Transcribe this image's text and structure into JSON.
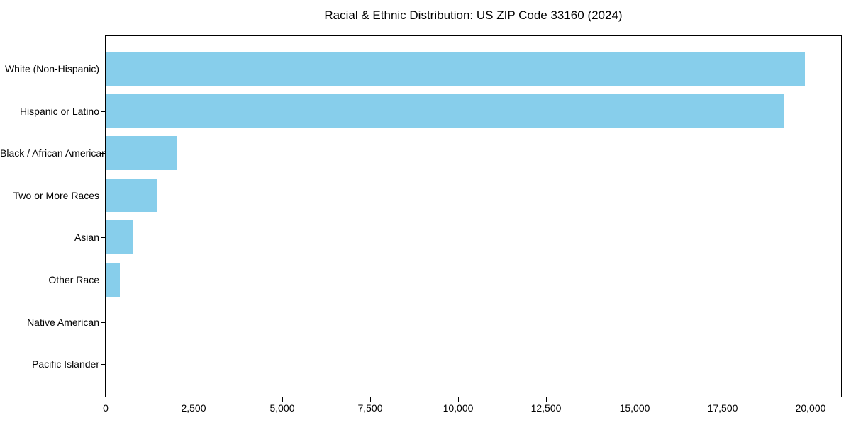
{
  "figure": {
    "background_color": "#FFFFFF"
  },
  "chart_data": {
    "type": "bar",
    "orientation": "horizontal",
    "title": "Racial & Ethnic Distribution: US ZIP Code 33160 (2024)",
    "categories": [
      "White (Non-Hispanic)",
      "Hispanic or Latino",
      "Black / African American",
      "Two or More Races",
      "Asian",
      "Other Race",
      "Native American",
      "Pacific Islander"
    ],
    "values": [
      19830,
      19250,
      2020,
      1450,
      790,
      400,
      0,
      0
    ],
    "xlabel": "",
    "ylabel": "",
    "xlim": [
      0,
      20860
    ],
    "x_ticks": [
      0,
      2500,
      5000,
      7500,
      10000,
      12500,
      15000,
      17500,
      20000
    ],
    "x_tick_labels": [
      "0",
      "2,500",
      "5,000",
      "7,500",
      "10,000",
      "12,500",
      "15,000",
      "17,500",
      "20,000"
    ],
    "grid": false,
    "legend_position": "none",
    "bar_color": "#87CEEB",
    "axis_color": "#000000",
    "text_color": "#000000"
  }
}
